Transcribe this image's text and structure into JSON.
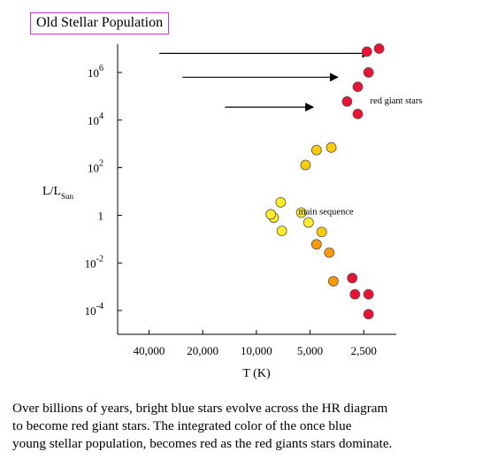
{
  "chart_data": {
    "type": "scatter",
    "title": "Old Stellar Population",
    "xlabel": "T (K)",
    "ylabel": "L/L",
    "ylabel_sub": "Sun",
    "x_scale": "log-reversed",
    "y_scale": "log",
    "xlim": [
      60000,
      1800
    ],
    "ylim": [
      1e-05,
      10000000
    ],
    "x_ticks": [
      {
        "value": 40000,
        "label": "40,000"
      },
      {
        "value": 20000,
        "label": "20,000"
      },
      {
        "value": 10000,
        "label": "10,000"
      },
      {
        "value": 5000,
        "label": "5,000"
      },
      {
        "value": 2500,
        "label": "2,500"
      }
    ],
    "y_ticks": [
      {
        "value": 1000000,
        "base": "10",
        "exp": "6"
      },
      {
        "value": 10000,
        "base": "10",
        "exp": "4"
      },
      {
        "value": 100,
        "base": "10",
        "exp": "2"
      },
      {
        "value": 1,
        "base": "1",
        "exp": ""
      },
      {
        "value": 0.01,
        "base": "10",
        "exp": "-2"
      },
      {
        "value": 0.0001,
        "base": "10",
        "exp": "-4"
      }
    ],
    "grid": false,
    "annotations": [
      {
        "text": "red giant stars",
        "x": 2300,
        "y": 50000
      },
      {
        "text": "main sequence",
        "x": 5800,
        "y": 1.1
      }
    ],
    "arrows": [
      {
        "x_from": 35000,
        "x_to": 2300,
        "y": 6300000
      },
      {
        "x_from": 26000,
        "x_to": 3500,
        "y": 630000
      },
      {
        "x_from": 15000,
        "x_to": 4800,
        "y": 35000
      }
    ],
    "point_colors": {
      "yellow": "#ffee22",
      "gold": "#ffcc00",
      "orange": "#ff9900",
      "red": "#ee1133"
    },
    "points": [
      {
        "x": 2050,
        "y": 10000000,
        "color": "red"
      },
      {
        "x": 2400,
        "y": 7500000,
        "color": "red"
      },
      {
        "x": 2350,
        "y": 1000000,
        "color": "red"
      },
      {
        "x": 2700,
        "y": 250000,
        "color": "red"
      },
      {
        "x": 3100,
        "y": 60000,
        "color": "red"
      },
      {
        "x": 2700,
        "y": 18000,
        "color": "red"
      },
      {
        "x": 3800,
        "y": 700,
        "color": "gold"
      },
      {
        "x": 4600,
        "y": 550,
        "color": "gold"
      },
      {
        "x": 5300,
        "y": 130,
        "color": "gold"
      },
      {
        "x": 5600,
        "y": 1.3,
        "color": "yellow"
      },
      {
        "x": 7300,
        "y": 3.5,
        "color": "yellow"
      },
      {
        "x": 8000,
        "y": 0.8,
        "color": "yellow"
      },
      {
        "x": 7200,
        "y": 0.22,
        "color": "yellow"
      },
      {
        "x": 8300,
        "y": 1.1,
        "color": "yellow"
      },
      {
        "x": 5100,
        "y": 0.5,
        "color": "yellow"
      },
      {
        "x": 4300,
        "y": 0.2,
        "color": "gold"
      },
      {
        "x": 4600,
        "y": 0.06,
        "color": "orange"
      },
      {
        "x": 3900,
        "y": 0.027,
        "color": "orange"
      },
      {
        "x": 3700,
        "y": 0.0017,
        "color": "orange"
      },
      {
        "x": 2900,
        "y": 0.0023,
        "color": "red"
      },
      {
        "x": 2800,
        "y": 0.00048,
        "color": "red"
      },
      {
        "x": 2350,
        "y": 0.00048,
        "color": "red"
      },
      {
        "x": 2350,
        "y": 7e-05,
        "color": "red"
      }
    ]
  },
  "caption": {
    "line1": "Over billions of years, bright blue stars evolve across the HR diagram",
    "line2": "to become red giant stars.  The integrated color of the once blue",
    "line3": "young stellar population, becomes red as the red giants stars dominate."
  }
}
